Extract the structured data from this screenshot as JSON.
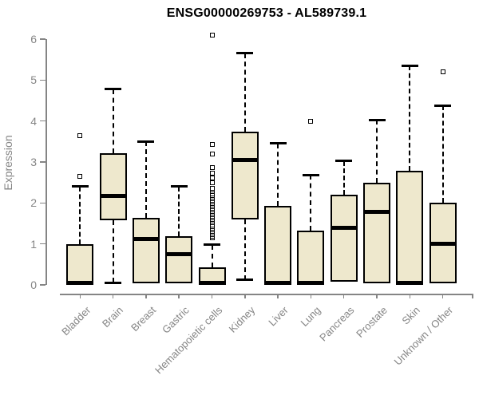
{
  "header": {
    "title": "ENSG00000269753 - AL589739.1"
  },
  "colors": {
    "box_fill": "#EEE8CD",
    "box_stroke": "#000000",
    "axis": "#858585",
    "title": "#000000"
  },
  "chart_data": {
    "type": "boxplot",
    "title": "ENSG00000269753 - AL589739.1",
    "xlabel": "",
    "ylabel": "Expression",
    "ylim": [
      0,
      6
    ],
    "yticks": [
      0,
      1,
      2,
      3,
      4,
      5,
      6
    ],
    "grid": false,
    "legend": null,
    "categories": [
      "Bladder",
      "Brain",
      "Breast",
      "Gastric",
      "Hematopoietic cells",
      "Kidney",
      "Liver",
      "Lung",
      "Pancreas",
      "Prostate",
      "Skin",
      "Unknown / Other"
    ],
    "series": [
      {
        "name": "Bladder",
        "whisker_low": 0,
        "q1": 0,
        "median": 0.05,
        "q3": 1.0,
        "whisker_high": 2.4,
        "outliers": [
          2.65,
          3.65
        ]
      },
      {
        "name": "Brain",
        "whisker_low": 0.05,
        "q1": 1.58,
        "median": 2.18,
        "q3": 3.22,
        "whisker_high": 4.78,
        "outliers": []
      },
      {
        "name": "Breast",
        "whisker_low": 0.03,
        "q1": 0.03,
        "median": 1.12,
        "q3": 1.63,
        "whisker_high": 3.5,
        "outliers": []
      },
      {
        "name": "Gastric",
        "whisker_low": 0.03,
        "q1": 0.03,
        "median": 0.75,
        "q3": 1.18,
        "whisker_high": 2.4,
        "outliers": []
      },
      {
        "name": "Hematopoietic cells",
        "whisker_low": 0,
        "q1": 0,
        "median": 0.04,
        "q3": 0.42,
        "whisker_high": 0.98,
        "outliers": [
          1.15,
          1.19,
          1.23,
          1.27,
          1.31,
          1.35,
          1.39,
          1.43,
          1.47,
          1.51,
          1.55,
          1.59,
          1.63,
          1.67,
          1.71,
          1.75,
          1.79,
          1.83,
          1.87,
          1.91,
          1.95,
          1.99,
          2.03,
          2.07,
          2.11,
          2.15,
          2.19,
          2.23,
          2.27,
          2.31,
          2.35,
          2.49,
          2.61,
          2.72,
          2.87,
          3.2,
          3.42,
          6.1
        ]
      },
      {
        "name": "Kidney",
        "whisker_low": 0.12,
        "q1": 1.6,
        "median": 3.05,
        "q3": 3.75,
        "whisker_high": 5.65,
        "outliers": []
      },
      {
        "name": "Liver",
        "whisker_low": 0,
        "q1": 0,
        "median": 0.05,
        "q3": 1.93,
        "whisker_high": 3.45,
        "outliers": []
      },
      {
        "name": "Lung",
        "whisker_low": 0,
        "q1": 0,
        "median": 0.05,
        "q3": 1.32,
        "whisker_high": 2.68,
        "outliers": [
          4.0
        ]
      },
      {
        "name": "Pancreas",
        "whisker_low": 0.08,
        "q1": 0.08,
        "median": 1.4,
        "q3": 2.2,
        "whisker_high": 3.02,
        "outliers": []
      },
      {
        "name": "Prostate",
        "whisker_low": 0.03,
        "q1": 0.03,
        "median": 1.78,
        "q3": 2.5,
        "whisker_high": 4.03,
        "outliers": []
      },
      {
        "name": "Skin",
        "whisker_low": 0,
        "q1": 0,
        "median": 0.05,
        "q3": 2.78,
        "whisker_high": 5.35,
        "outliers": []
      },
      {
        "name": "Unknown / Other",
        "whisker_low": 0.03,
        "q1": 0.03,
        "median": 1.0,
        "q3": 2.0,
        "whisker_high": 4.38,
        "outliers": [
          5.2
        ]
      }
    ]
  }
}
